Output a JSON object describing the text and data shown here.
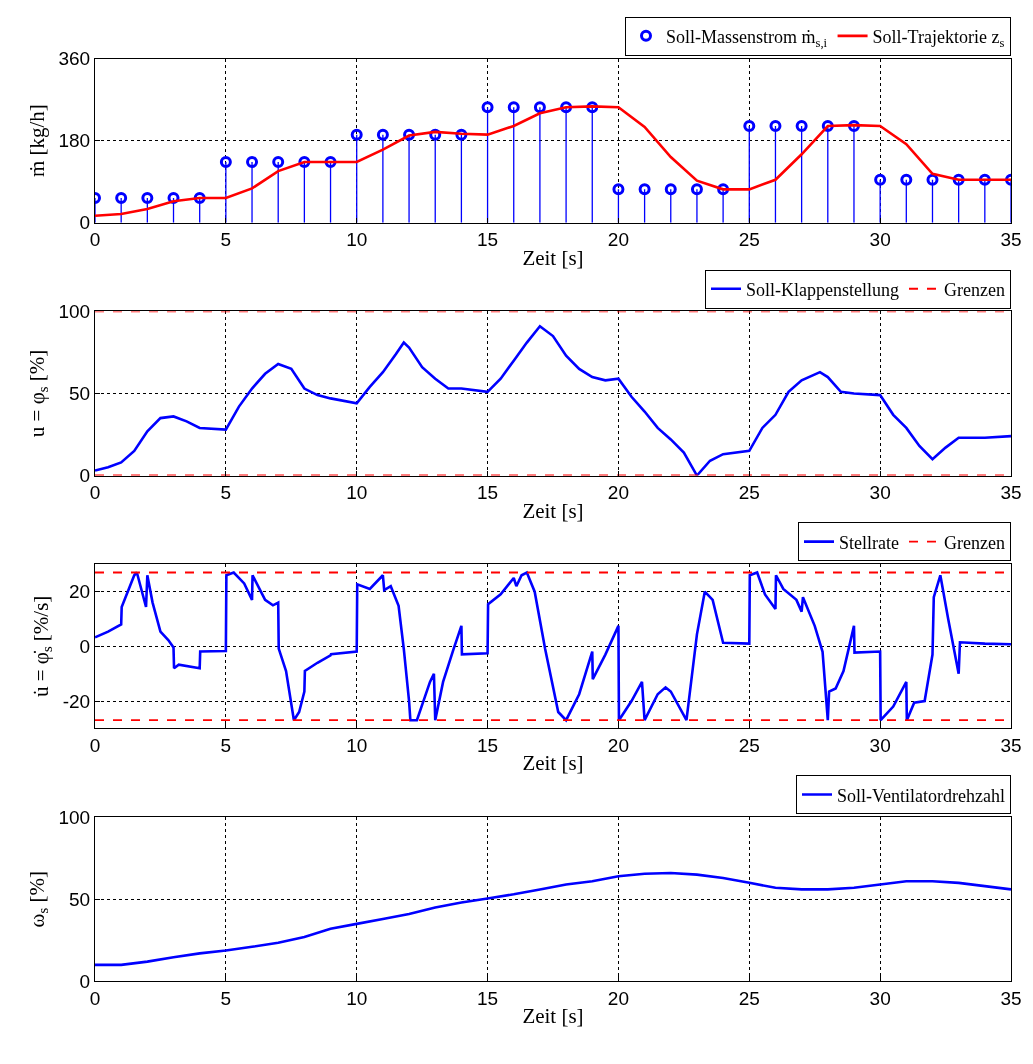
{
  "chart_data": [
    {
      "type": "line",
      "xlabel": "Zeit [s]",
      "ylabel": "ṁ [kg/h]",
      "xlim": [
        0,
        35
      ],
      "ylim": [
        0,
        360
      ],
      "xticks": [
        0,
        5,
        10,
        15,
        20,
        25,
        30,
        35
      ],
      "yticks": [
        0,
        180,
        360
      ],
      "grid": true,
      "legend": "top right",
      "x": [
        0,
        1,
        2,
        3,
        4,
        5,
        6,
        7,
        8,
        9,
        10,
        11,
        12,
        13,
        14,
        15,
        16,
        17,
        18,
        19,
        20,
        21,
        22,
        23,
        24,
        25,
        26,
        27,
        28,
        29,
        30,
        31,
        32,
        33,
        34,
        35
      ],
      "series": [
        {
          "name": "Soll-Massenstrom ṁ$_{s,i}$",
          "type": "lollipop",
          "marker": "circle",
          "color": "#0000ff",
          "values": [
            54,
            54,
            54,
            54,
            54,
            133,
            133,
            133,
            133,
            133,
            193,
            193,
            193,
            193,
            193,
            253,
            253,
            253,
            253,
            253,
            73,
            73,
            73,
            73,
            73,
            212,
            212,
            212,
            212,
            212,
            94,
            94,
            94,
            94,
            94,
            94
          ]
        },
        {
          "name": "Soll-Trajektorie z$_{s}$",
          "type": "line",
          "line_style": "solid",
          "color": "#ff0000",
          "x": [
            0,
            1,
            2,
            3,
            4,
            5,
            6,
            7,
            8,
            9,
            10,
            11,
            12,
            13,
            14,
            15,
            16,
            17,
            18,
            19,
            20,
            21,
            22,
            23,
            24,
            25,
            26,
            27,
            28,
            29,
            30,
            31,
            32,
            33,
            34,
            35
          ],
          "values": [
            15,
            19,
            30,
            47,
            54,
            54,
            75,
            113,
            133,
            133,
            133,
            160,
            191,
            199,
            195,
            193,
            212,
            240,
            253,
            255,
            253,
            210,
            144,
            92,
            73,
            73,
            94,
            150,
            212,
            214,
            212,
            172,
            107,
            94,
            94,
            94
          ]
        }
      ]
    },
    {
      "type": "line",
      "xlabel": "Zeit [s]",
      "ylabel": "u = φ$_{s}$ [%]",
      "xlim": [
        0,
        35
      ],
      "ylim": [
        0,
        100
      ],
      "xticks": [
        0,
        5,
        10,
        15,
        20,
        25,
        30,
        35
      ],
      "yticks": [
        0,
        50,
        100
      ],
      "grid": true,
      "legend": "top right",
      "series": [
        {
          "name": "Soll-Klappenstellung",
          "color": "#0000ff",
          "line_style": "solid",
          "x": [
            0,
            0.5,
            1,
            1.5,
            2,
            2.5,
            3,
            3.5,
            4,
            5,
            5.5,
            6,
            6.5,
            7,
            7.5,
            8,
            8.5,
            9,
            10,
            10.5,
            11,
            11.5,
            11.8,
            12,
            12.5,
            13,
            13.5,
            14,
            15,
            15.5,
            16,
            16.5,
            17,
            17.5,
            18,
            18.5,
            19,
            19.5,
            20,
            20.5,
            21,
            21.5,
            22,
            22.5,
            23,
            23.5,
            24,
            25,
            25.5,
            26,
            26.5,
            27,
            27.7,
            28,
            28.5,
            29,
            30,
            30.5,
            31,
            31.5,
            32,
            32.5,
            33,
            34,
            35
          ],
          "values": [
            3,
            5,
            8,
            15,
            27,
            35,
            36,
            33,
            29,
            28,
            42,
            53,
            62,
            68,
            65,
            53,
            49,
            47,
            44,
            54,
            63,
            74,
            81,
            78,
            66,
            59,
            53,
            53,
            51,
            59,
            70,
            81,
            91,
            85,
            73,
            65,
            60,
            58,
            59,
            48,
            39,
            29,
            22,
            14,
            0,
            9,
            13,
            15,
            29,
            37,
            51,
            58,
            63,
            60,
            51,
            50,
            49,
            37,
            29,
            18,
            10,
            17,
            23,
            23,
            24
          ]
        }
      ],
      "ref_lines": [
        {
          "axis": "y",
          "value": 100,
          "label": "Grenzen",
          "color": "#ff0000",
          "line_style": "dashed"
        },
        {
          "axis": "y",
          "value": 0,
          "label": null,
          "color": "#ff0000",
          "line_style": "dashed"
        }
      ]
    },
    {
      "type": "line",
      "xlabel": "Zeit [s]",
      "ylabel": "u̇ = φ̇$_{s}$ [%/s]",
      "xlim": [
        0,
        35
      ],
      "ylim": [
        -30,
        30
      ],
      "xticks": [
        0,
        5,
        10,
        15,
        20,
        25,
        30,
        35
      ],
      "yticks": [
        -20,
        0,
        20
      ],
      "grid": true,
      "legend": "top right",
      "series": [
        {
          "name": "Stellrate",
          "color": "#0000ff",
          "line_style": "solid",
          "x": [
            0,
            0.5,
            1,
            1.02,
            1.5,
            1.6,
            1.95,
            2.0,
            2.2,
            2.5,
            2.8,
            3.0,
            3.02,
            3.2,
            4.0,
            4.02,
            5.0,
            5.02,
            5.3,
            5.7,
            6.0,
            6.02,
            6.5,
            6.8,
            7.0,
            7.02,
            7.3,
            7.6,
            7.8,
            8.0,
            8.02,
            8.5,
            9.0,
            9.02,
            10,
            10.02,
            10.5,
            11,
            11.05,
            11.3,
            11.6,
            11.8,
            12.0,
            12.05,
            12.3,
            12.8,
            12.95,
            13.0,
            13.3,
            13.7,
            14.0,
            14.02,
            15,
            15.02,
            15.5,
            16.0,
            16.1,
            16.3,
            16.5,
            16.8,
            17.2,
            17.7,
            18.0,
            18.5,
            19.0,
            19.02,
            19.5,
            20.0,
            20.02,
            20.5,
            20.9,
            21.0,
            21.5,
            21.8,
            22.0,
            22.6,
            23.0,
            23.3,
            23.6,
            24.0,
            25.0,
            25.02,
            25.3,
            25.6,
            26.0,
            26.02,
            26.3,
            26.8,
            27.0,
            27.05,
            27.5,
            27.8,
            28.0,
            28.05,
            28.3,
            28.6,
            29.0,
            29.02,
            30.0,
            30.02,
            30.5,
            31.0,
            31.02,
            31.3,
            31.7,
            32.0,
            32.05,
            32.3,
            32.6,
            32.9,
            33.0,
            33.05,
            34,
            35
          ],
          "values": [
            3.3,
            5.4,
            8,
            14.4,
            26,
            27,
            14.4,
            26,
            16,
            5.4,
            2.3,
            -0.4,
            -8,
            -6.7,
            -8,
            -1.9,
            -1.7,
            26,
            27,
            23,
            17,
            26,
            17,
            15,
            16,
            -0.8,
            -9,
            -27,
            -24,
            -16.5,
            -9,
            -6,
            -3.3,
            -2.9,
            -1.9,
            22.7,
            21,
            26,
            20.6,
            22,
            14.8,
            -1,
            -20,
            -27,
            -27,
            -13,
            -10,
            -27,
            -13,
            -1,
            7.5,
            -2.9,
            -2.5,
            15.4,
            19,
            25,
            22,
            26,
            27,
            20,
            -1,
            -24,
            -27,
            -17.5,
            -1.9,
            -12,
            -3,
            7.5,
            -27,
            -20,
            -13,
            -27,
            -17.5,
            -15,
            -16.5,
            -27,
            4.4,
            20,
            17,
            1.3,
            1,
            26,
            27,
            19,
            13.7,
            26,
            21,
            17,
            12.7,
            18,
            7.5,
            -2,
            -27,
            -16.5,
            -15.4,
            -9,
            7.5,
            -2.3,
            -1.9,
            -27,
            -22,
            -13,
            -27,
            -20.6,
            -20,
            -3,
            18,
            26,
            10,
            -5,
            -10,
            1.5,
            1,
            0.8
          ]
        }
      ],
      "ref_lines": [
        {
          "axis": "y",
          "value": 27,
          "label": "Grenzen",
          "color": "#ff0000",
          "line_style": "dashed"
        },
        {
          "axis": "y",
          "value": -27,
          "label": null,
          "color": "#ff0000",
          "line_style": "dashed"
        }
      ]
    },
    {
      "type": "line",
      "xlabel": "Zeit [s]",
      "ylabel": "ω$_{s}$ [%]",
      "xlim": [
        0,
        35
      ],
      "ylim": [
        0,
        100
      ],
      "xticks": [
        0,
        5,
        10,
        15,
        20,
        25,
        30,
        35
      ],
      "yticks": [
        0,
        50,
        100
      ],
      "grid": true,
      "legend": "top right",
      "x": [
        0,
        1,
        2,
        3,
        4,
        5,
        6,
        7,
        8,
        9,
        10,
        11,
        12,
        13,
        14,
        15,
        16,
        17,
        18,
        19,
        20,
        21,
        22,
        23,
        24,
        25,
        26,
        27,
        28,
        29,
        30,
        31,
        32,
        33,
        34,
        35
      ],
      "series": [
        {
          "name": "Soll-Ventilatordrehzahl",
          "color": "#0000ff",
          "line_style": "solid",
          "values": [
            10,
            10,
            12,
            14.7,
            17,
            18.8,
            21,
            23.5,
            27,
            32,
            35,
            38,
            41,
            45,
            48,
            50.5,
            53,
            56,
            59,
            61,
            64,
            65.5,
            66,
            65,
            63,
            60,
            57,
            56,
            56,
            57,
            59,
            61,
            61,
            60,
            58,
            56
          ]
        }
      ]
    }
  ]
}
